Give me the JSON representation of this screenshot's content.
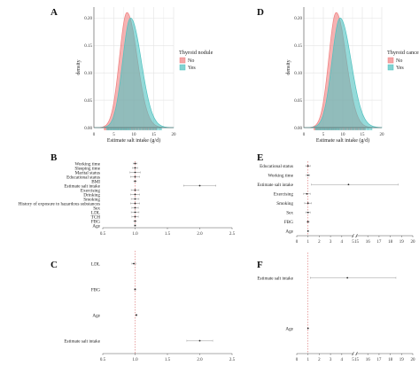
{
  "chart_data": [
    {
      "panel": "A",
      "type": "area",
      "xlabel": "Estimate salt intake (g/d)",
      "ylabel": "density",
      "xlim": [
        0,
        20
      ],
      "ylim": [
        0,
        0.22
      ],
      "xticks": [
        "0",
        "5",
        "10",
        "15",
        "20"
      ],
      "yticks": [
        "0.00",
        "0.05",
        "0.10",
        "0.15",
        "0.20"
      ],
      "grid": true,
      "legend": {
        "title": "Thyroid nodule",
        "position": "right",
        "entries": [
          "No",
          "Yes"
        ]
      },
      "series": [
        {
          "name": "No",
          "color": "#f08080",
          "mean": 8.3,
          "sd": 1.9,
          "peak": 0.21
        },
        {
          "name": "Yes",
          "color": "#4fc1bf",
          "mean": 9.2,
          "sd": 2.0,
          "peak": 0.2
        }
      ]
    },
    {
      "panel": "D",
      "type": "area",
      "xlabel": "Estimate salt intake (g/d)",
      "ylabel": "density",
      "xlim": [
        0,
        20
      ],
      "ylim": [
        0,
        0.22
      ],
      "xticks": [
        "0",
        "5",
        "10",
        "15",
        "20"
      ],
      "yticks": [
        "0.00",
        "0.05",
        "0.10",
        "0.15",
        "0.20"
      ],
      "grid": true,
      "legend": {
        "title": "Thyroid cancer",
        "position": "right",
        "entries": [
          "No",
          "Yes"
        ]
      },
      "series": [
        {
          "name": "No",
          "color": "#f08080",
          "mean": 8.3,
          "sd": 1.9,
          "peak": 0.21
        },
        {
          "name": "Yes",
          "color": "#4fc1bf",
          "mean": 9.3,
          "sd": 2.1,
          "peak": 0.2
        }
      ]
    },
    {
      "panel": "B",
      "type": "scatter",
      "xlim": [
        0.5,
        2.5
      ],
      "xticks": [
        "0.5",
        "1.0",
        "1.5",
        "2.0",
        "2.5"
      ],
      "reference": 1.0,
      "rows": [
        {
          "label": "Working time",
          "est": 1.0,
          "lo": 0.97,
          "hi": 1.03
        },
        {
          "label": "Sleeping time",
          "est": 1.0,
          "lo": 0.96,
          "hi": 1.04
        },
        {
          "label": "Marital status",
          "est": 1.0,
          "lo": 0.92,
          "hi": 1.08
        },
        {
          "label": "Educational status",
          "est": 1.0,
          "lo": 0.93,
          "hi": 1.07
        },
        {
          "label": "BMI",
          "est": 1.0,
          "lo": 0.98,
          "hi": 1.02
        },
        {
          "label": "Estimate salt intake",
          "est": 2.0,
          "lo": 1.75,
          "hi": 2.25
        },
        {
          "label": "Exercising",
          "est": 1.0,
          "lo": 0.94,
          "hi": 1.06
        },
        {
          "label": "Drinking",
          "est": 1.0,
          "lo": 0.93,
          "hi": 1.07
        },
        {
          "label": "Smoking",
          "est": 1.0,
          "lo": 0.94,
          "hi": 1.06
        },
        {
          "label": "History of exposure to hazardous substances",
          "est": 1.0,
          "lo": 0.93,
          "hi": 1.07
        },
        {
          "label": "Sex",
          "est": 1.0,
          "lo": 0.95,
          "hi": 1.05
        },
        {
          "label": "LDL",
          "est": 1.0,
          "lo": 0.94,
          "hi": 1.06
        },
        {
          "label": "TCH",
          "est": 1.0,
          "lo": 0.95,
          "hi": 1.05
        },
        {
          "label": "FBG",
          "est": 1.0,
          "lo": 0.98,
          "hi": 1.02
        },
        {
          "label": "Age",
          "est": 1.0,
          "lo": 0.99,
          "hi": 1.01
        }
      ]
    },
    {
      "panel": "C",
      "type": "scatter",
      "xlim": [
        0.5,
        2.5
      ],
      "xticks": [
        "0.5",
        "1.0",
        "1.5",
        "2.0",
        "2.5"
      ],
      "reference": 1.0,
      "rows": [
        {
          "label": "LDL",
          "est": 0.98,
          "lo": 0.95,
          "hi": 1.01
        },
        {
          "label": "FBG",
          "est": 1.0,
          "lo": 0.99,
          "hi": 1.01
        },
        {
          "label": "Age",
          "est": 1.02,
          "lo": 1.01,
          "hi": 1.03
        },
        {
          "label": "Estimate salt intake",
          "est": 2.0,
          "lo": 1.8,
          "hi": 2.2
        }
      ]
    },
    {
      "panel": "E",
      "type": "scatter",
      "xlim": [
        0,
        20
      ],
      "axis_break": [
        5,
        15
      ],
      "xticks": [
        "0",
        "1",
        "2",
        "3",
        "4",
        "5",
        "15",
        "16",
        "17",
        "18",
        "19",
        "20"
      ],
      "reference": 1.0,
      "rows": [
        {
          "label": "Educational status",
          "est": 1.0,
          "lo": 0.8,
          "hi": 1.2
        },
        {
          "label": "Working time",
          "est": 1.0,
          "lo": 0.85,
          "hi": 1.15
        },
        {
          "label": "Estimate salt intake",
          "est": 4.6,
          "lo": 1.3,
          "hi": 18.7
        },
        {
          "label": "Exercising",
          "est": 0.9,
          "lo": 0.6,
          "hi": 1.2
        },
        {
          "label": "Smoking",
          "est": 1.0,
          "lo": 0.7,
          "hi": 1.3
        },
        {
          "label": "Sex",
          "est": 1.0,
          "lo": 0.8,
          "hi": 1.2
        },
        {
          "label": "FBG",
          "est": 1.0,
          "lo": 0.9,
          "hi": 1.1
        },
        {
          "label": "Age",
          "est": 1.0,
          "lo": 0.98,
          "hi": 1.02
        }
      ]
    },
    {
      "panel": "F",
      "type": "scatter",
      "xlim": [
        0,
        20
      ],
      "axis_break": [
        5,
        15
      ],
      "xticks": [
        "0",
        "1",
        "2",
        "3",
        "4",
        "5",
        "15",
        "16",
        "17",
        "18",
        "19",
        "20"
      ],
      "reference": 1.0,
      "rows": [
        {
          "label": "Estimate salt intake",
          "est": 4.5,
          "lo": 1.2,
          "hi": 18.5
        },
        {
          "label": "Age",
          "est": 1.0,
          "lo": 0.98,
          "hi": 1.02
        }
      ]
    }
  ]
}
